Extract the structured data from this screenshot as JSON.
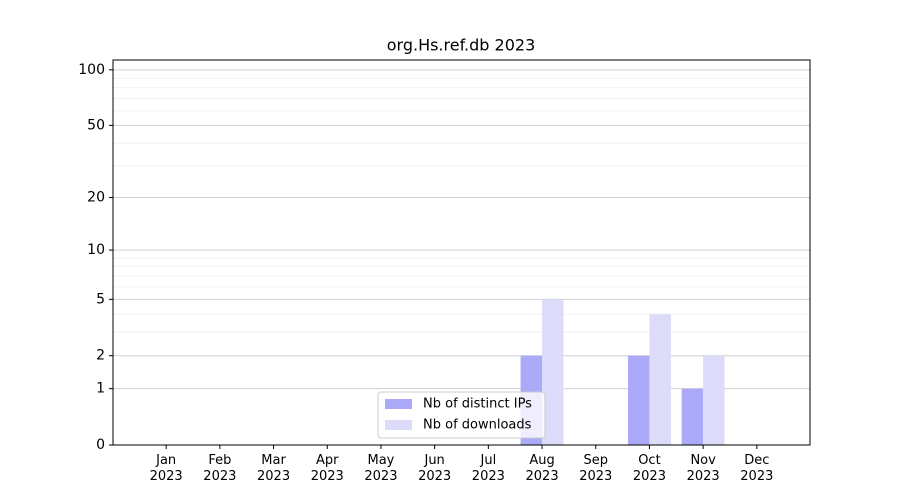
{
  "chart_data": {
    "type": "bar",
    "title": "org.Hs.ref.db 2023",
    "categories": [
      "Jan 2023",
      "Feb 2023",
      "Mar 2023",
      "Apr 2023",
      "May 2023",
      "Jun 2023",
      "Jul 2023",
      "Aug 2023",
      "Sep 2023",
      "Oct 2023",
      "Nov 2023",
      "Dec 2023"
    ],
    "series": [
      {
        "name": "Nb of distinct IPs",
        "color": "#aaaaf8",
        "values": [
          0,
          0,
          0,
          0,
          0,
          0,
          0,
          2,
          0,
          2,
          1,
          0
        ]
      },
      {
        "name": "Nb of downloads",
        "color": "#dcdcfa",
        "values": [
          0,
          0,
          0,
          0,
          0,
          0,
          0,
          5,
          0,
          4,
          2,
          0
        ]
      }
    ],
    "y_scale": "log1p",
    "ylim": [
      0,
      113
    ],
    "yticks": [
      0,
      1,
      2,
      5,
      10,
      20,
      50,
      100
    ],
    "minor_yticks": [
      3,
      4,
      6,
      7,
      8,
      9,
      30,
      40,
      60,
      70,
      80,
      90
    ],
    "grid": true,
    "legend_position": "lower center"
  }
}
